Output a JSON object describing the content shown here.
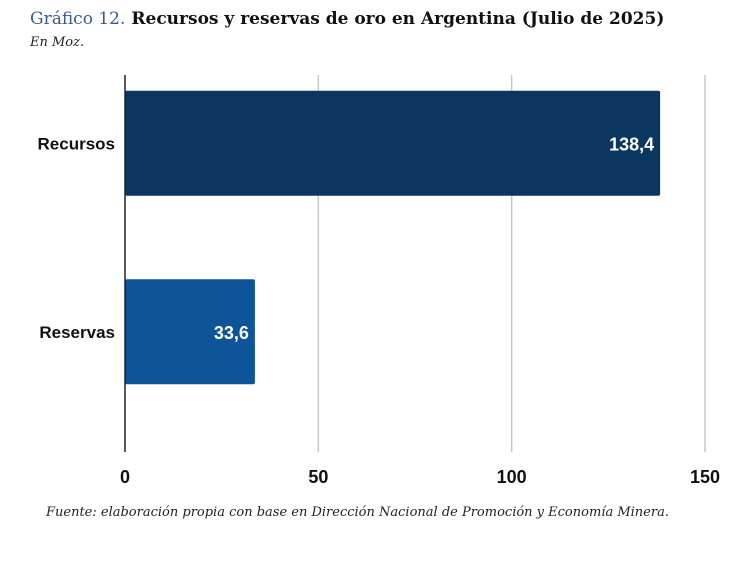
{
  "header": {
    "prefix": "Gráfico 12.",
    "title": "Recursos y reservas de oro en Argentina (Julio de 2025)",
    "subtitle": "En Moz."
  },
  "footer": {
    "source": "Fuente: elaboración propia con base en Dirección Nacional de Promoción y Economía Minera."
  },
  "colors": {
    "title_prefix": "#3a5a8c",
    "bar_recursos": "#0b365f",
    "bar_reservas": "#0e5498",
    "grid": "#c8c8c8",
    "axis": "#222222"
  },
  "chart_data": {
    "type": "bar",
    "orientation": "horizontal",
    "title": "Recursos y reservas de oro en Argentina (Julio de 2025)",
    "subtitle": "En Moz.",
    "categories": [
      "Recursos",
      "Reservas"
    ],
    "values": [
      138.4,
      33.6
    ],
    "value_labels": [
      "138,4",
      "33,6"
    ],
    "xlim": [
      0,
      150
    ],
    "xticks": [
      0,
      50,
      100,
      150
    ],
    "grid": true,
    "legend": "none"
  }
}
